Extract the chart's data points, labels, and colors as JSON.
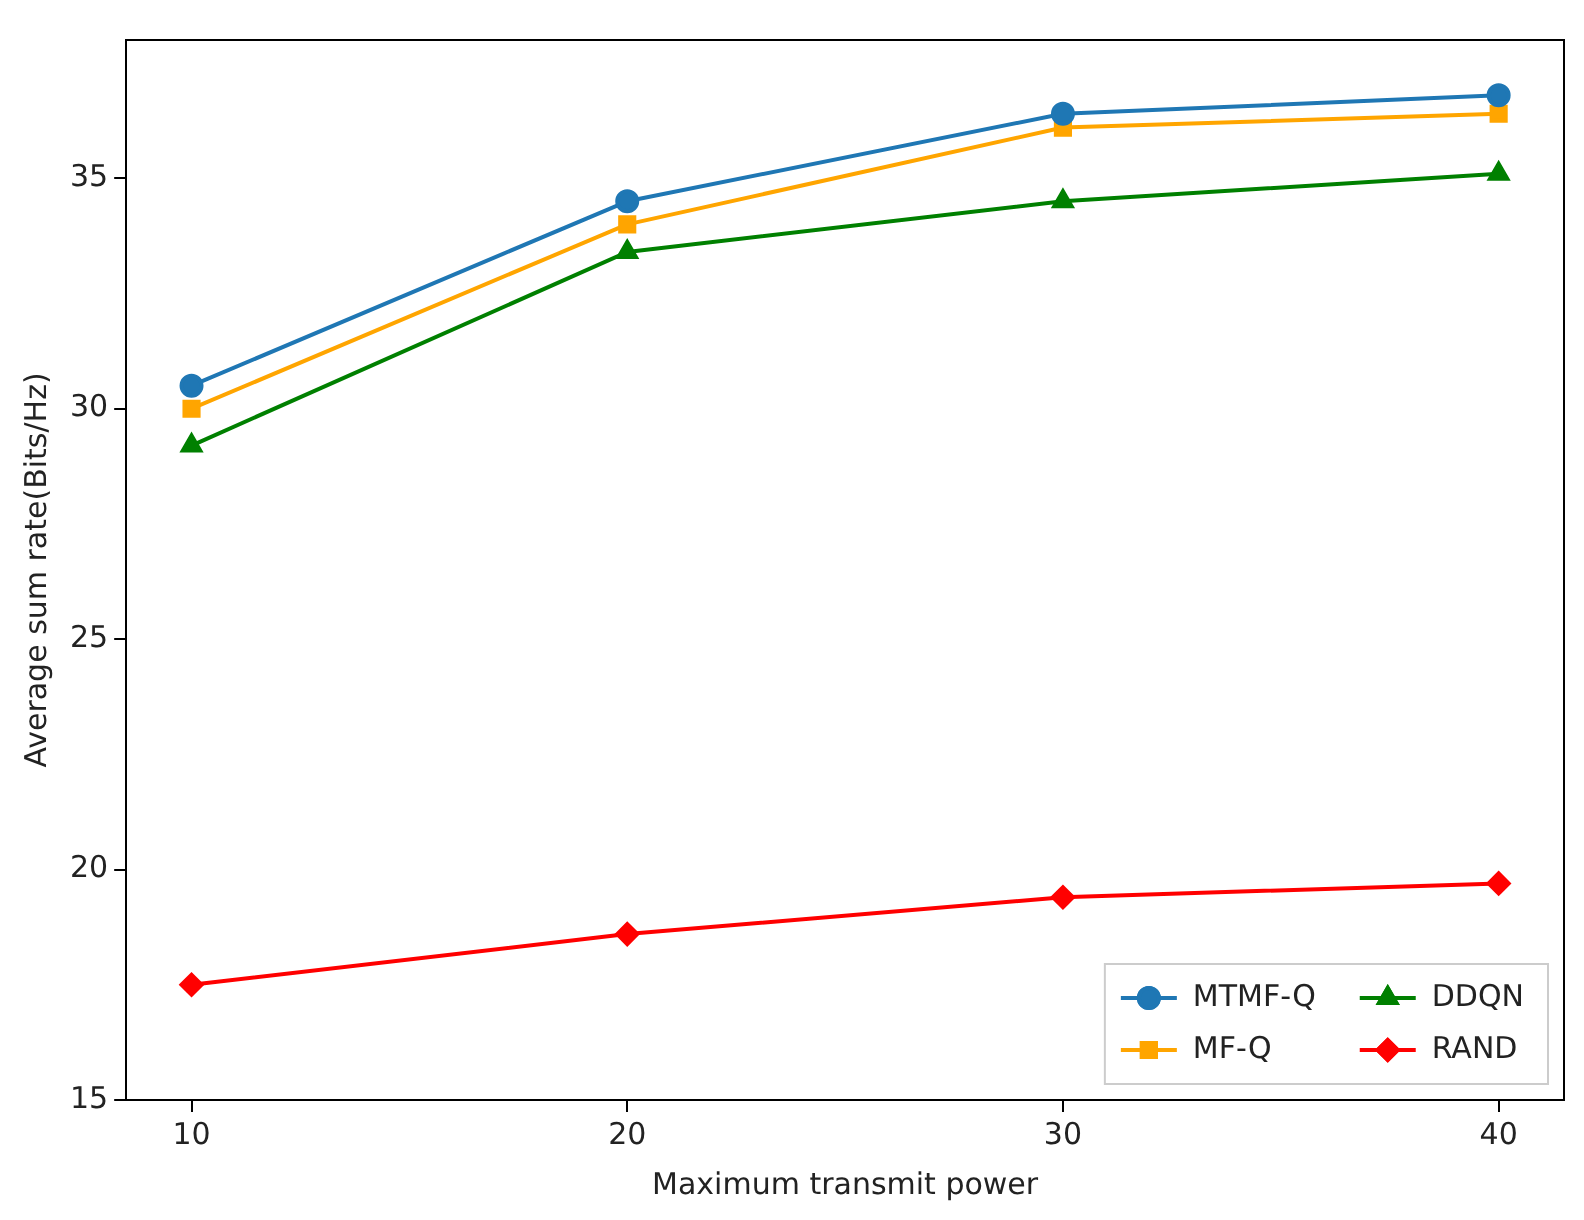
{
  "chart_data": {
    "type": "line",
    "xlabel": "Maximum transmit power",
    "ylabel": "Average sum rate(Bits/Hz)",
    "x": [
      10,
      20,
      30,
      40
    ],
    "series": [
      {
        "name": "MTMF-Q",
        "color": "#1f77b4",
        "marker": "circle",
        "values": [
          30.5,
          34.5,
          36.4,
          36.8
        ]
      },
      {
        "name": "MF-Q",
        "color": "#ffa500",
        "marker": "square",
        "values": [
          30.0,
          34.0,
          36.1,
          36.4
        ]
      },
      {
        "name": "DDQN",
        "color": "#008000",
        "marker": "triangle",
        "values": [
          29.2,
          33.4,
          34.5,
          35.1
        ]
      },
      {
        "name": "RAND",
        "color": "#ff0000",
        "marker": "diamond",
        "values": [
          17.5,
          18.6,
          19.4,
          19.7
        ]
      }
    ],
    "xlim": [
      8.5,
      41.5
    ],
    "xticks": [
      10,
      20,
      30,
      40
    ],
    "ylim": [
      15,
      38
    ],
    "yticks": [
      15,
      20,
      25,
      30,
      35
    ],
    "grid": false,
    "legend": "bottom right",
    "line_style": "solid"
  }
}
